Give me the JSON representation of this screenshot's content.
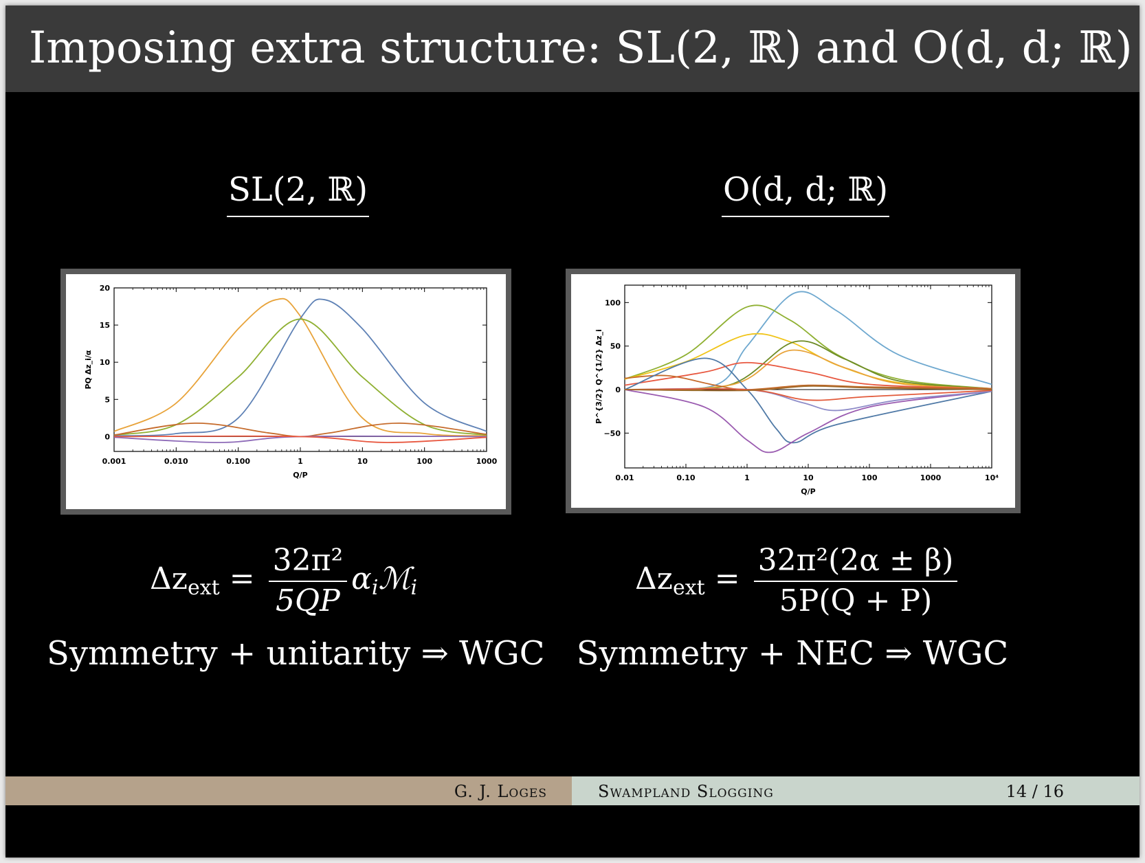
{
  "title": "Imposing extra structure: SL(2, ℝ) and O(d, d; ℝ)",
  "left": {
    "heading": "SL(2, ℝ)",
    "formula": {
      "lhs": "Δz",
      "lhs_sub": "ext",
      "eq": "=",
      "num": "32π²",
      "den": "5QP",
      "tail": "α",
      "tail_sub": "i",
      "tail2": "ℳ",
      "tail2_sub": "i"
    },
    "statement": "Symmetry + unitarity ⇒ WGC"
  },
  "right": {
    "heading": "O(d, d; ℝ)",
    "formula": {
      "lhs": "Δz",
      "lhs_sub": "ext",
      "eq": "=",
      "num": "32π²(2α ± β)",
      "den": "5P(Q + P)"
    },
    "statement": "Symmetry + NEC ⇒ WGC"
  },
  "footer": {
    "author": "G. J. Loges",
    "talk": "Swampland Slogging",
    "page": "14 / 16"
  },
  "chart_data": [
    {
      "type": "line",
      "xscale": "log",
      "xlabel": "Q/P",
      "ylabel": "PQ Δz_i/α",
      "xlim": [
        0.001,
        1000
      ],
      "ylim": [
        -2,
        20
      ],
      "xticks": [
        "0.001",
        "0.010",
        "0.100",
        "1",
        "10",
        "100",
        "1000"
      ],
      "yticks": [
        "0",
        "5",
        "10",
        "15",
        "20"
      ],
      "series": [
        {
          "color": "#e8a33a",
          "x": [
            0.001,
            0.01,
            0.1,
            0.4,
            1,
            10,
            100,
            1000
          ],
          "y": [
            0.7,
            4.5,
            14.5,
            18.4,
            16.2,
            2.5,
            0.4,
            0.1
          ]
        },
        {
          "color": "#5e81b5",
          "x": [
            0.001,
            0.01,
            0.1,
            1,
            2.5,
            10,
            100,
            1000
          ],
          "y": [
            0.1,
            0.4,
            2.5,
            15.9,
            18.4,
            14.5,
            4.5,
            0.7
          ]
        },
        {
          "color": "#8fb032",
          "x": [
            0.001,
            0.01,
            0.1,
            1,
            10,
            100,
            1000
          ],
          "y": [
            0.2,
            1.6,
            8.0,
            15.8,
            8.0,
            1.6,
            0.2
          ]
        },
        {
          "color": "#c56a2a",
          "x": [
            0.001,
            0.02,
            0.3,
            1,
            3,
            40,
            1000
          ],
          "y": [
            0.2,
            1.8,
            0.5,
            0.0,
            0.5,
            1.8,
            0.3
          ]
        },
        {
          "color": "#8e6bb8",
          "x": [
            0.001,
            0.05,
            1,
            1000
          ],
          "y": [
            -0.1,
            -0.8,
            0.0,
            0.0
          ]
        },
        {
          "color": "#e8573f",
          "x": [
            0.001,
            1,
            25,
            1000
          ],
          "y": [
            0.0,
            0.0,
            -0.8,
            -0.1
          ]
        }
      ]
    },
    {
      "type": "line",
      "xscale": "log",
      "xlabel": "Q/P",
      "ylabel": "P^{3/2} Q^{1/2} Δz_i",
      "xlim": [
        0.01,
        10000
      ],
      "ylim": [
        -90,
        120
      ],
      "xticks": [
        "0.01",
        "0.10",
        "1",
        "10",
        "100",
        "1000",
        "10⁴"
      ],
      "yticks": [
        "−50",
        "0",
        "50",
        "100"
      ],
      "series": [
        {
          "color": "#6ea8cf",
          "x": [
            0.01,
            0.3,
            1,
            6,
            30,
            300,
            10000
          ],
          "y": [
            0,
            5,
            50,
            111,
            90,
            40,
            6
          ]
        },
        {
          "color": "#8fb032",
          "x": [
            0.01,
            0.1,
            1,
            5,
            30,
            300,
            10000
          ],
          "y": [
            12,
            40,
            95,
            80,
            40,
            12,
            1
          ]
        },
        {
          "color": "#f0c419",
          "x": [
            0.01,
            0.1,
            1,
            5,
            30,
            300,
            10000
          ],
          "y": [
            12,
            32,
            63,
            55,
            28,
            8,
            1
          ]
        },
        {
          "color": "#6d8b25",
          "x": [
            0.01,
            0.5,
            6,
            40,
            300,
            10000
          ],
          "y": [
            0,
            5,
            55,
            35,
            10,
            1
          ]
        },
        {
          "color": "#e8a33a",
          "x": [
            0.01,
            0.6,
            5,
            40,
            300,
            10000
          ],
          "y": [
            0,
            6,
            45,
            25,
            7,
            1
          ]
        },
        {
          "color": "#e8573f",
          "x": [
            0.01,
            0.2,
            1,
            10,
            100,
            10000
          ],
          "y": [
            5,
            20,
            31,
            20,
            6,
            1
          ]
        },
        {
          "color": "#c56a2a",
          "x": [
            0.01,
            0.05,
            0.3,
            1,
            10,
            100,
            10000
          ],
          "y": [
            13,
            16,
            5,
            0,
            5,
            3,
            1
          ]
        },
        {
          "color": "#4f79a6",
          "x": [
            0.01,
            0.2,
            1,
            3,
            6,
            30,
            10000
          ],
          "y": [
            0,
            36,
            0,
            -45,
            -61,
            -40,
            -2
          ]
        },
        {
          "color": "#9a5bb0",
          "x": [
            0.01,
            0.2,
            1,
            2.5,
            10,
            100,
            10000
          ],
          "y": [
            0,
            -20,
            -58,
            -72,
            -50,
            -20,
            -2
          ]
        },
        {
          "color": "#8e8cc8",
          "x": [
            0.01,
            1,
            8,
            30,
            300,
            10000
          ],
          "y": [
            0,
            0,
            -15,
            -24,
            -12,
            -2
          ]
        },
        {
          "color": "#e25a3a",
          "x": [
            0.01,
            1,
            10,
            100,
            10000
          ],
          "y": [
            0,
            0,
            -12,
            -8,
            -1
          ]
        },
        {
          "color": "#a0692a",
          "x": [
            0.01,
            1,
            10,
            100,
            10000
          ],
          "y": [
            0,
            -1,
            4,
            2,
            0
          ]
        }
      ]
    }
  ]
}
